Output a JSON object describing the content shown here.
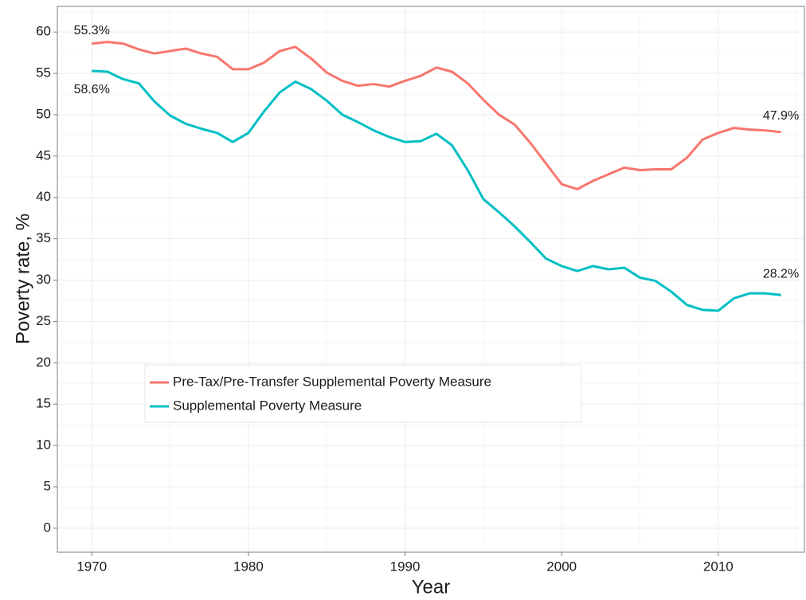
{
  "chart_data": {
    "type": "line",
    "x": [
      1970,
      1971,
      1972,
      1973,
      1974,
      1975,
      1976,
      1977,
      1978,
      1979,
      1980,
      1981,
      1982,
      1983,
      1984,
      1985,
      1986,
      1987,
      1988,
      1989,
      1990,
      1991,
      1992,
      1993,
      1994,
      1995,
      1996,
      1997,
      1998,
      1999,
      2000,
      2001,
      2002,
      2003,
      2004,
      2005,
      2006,
      2007,
      2008,
      2009,
      2010,
      2011,
      2012,
      2013,
      2014
    ],
    "series": [
      {
        "name": "Pre-Tax/Pre-Transfer Supplemental Poverty Measure",
        "color": "#f8766d",
        "values": [
          58.6,
          58.8,
          58.6,
          57.9,
          57.4,
          57.7,
          58.0,
          57.4,
          57.0,
          55.5,
          55.5,
          56.3,
          57.7,
          58.2,
          56.8,
          55.1,
          54.1,
          53.5,
          53.7,
          53.4,
          54.1,
          54.7,
          55.7,
          55.2,
          53.8,
          51.8,
          50.0,
          48.8,
          46.6,
          44.1,
          41.6,
          41.0,
          42.0,
          42.8,
          43.6,
          43.3,
          43.4,
          43.4,
          44.8,
          47.0,
          47.8,
          48.4,
          48.2,
          48.1,
          47.9
        ]
      },
      {
        "name": "Supplemental Poverty Measure",
        "color": "#00bfc4",
        "values": [
          55.3,
          55.2,
          54.3,
          53.8,
          51.6,
          49.9,
          48.9,
          48.3,
          47.8,
          46.7,
          47.8,
          50.4,
          52.7,
          54.0,
          53.1,
          51.7,
          50.0,
          49.1,
          48.1,
          47.3,
          46.7,
          46.8,
          47.7,
          46.3,
          43.3,
          39.8,
          38.2,
          36.5,
          34.6,
          32.6,
          31.7,
          31.1,
          31.7,
          31.3,
          31.5,
          30.3,
          29.9,
          28.6,
          27.0,
          26.4,
          26.3,
          27.8,
          28.4,
          28.4,
          28.2
        ]
      }
    ],
    "annotations": [
      "55.3%",
      "58.6%",
      "47.9%",
      "28.2%"
    ],
    "xlabel": "Year",
    "ylabel": "Poverty rate, %",
    "xlim": [
      1967.8,
      2015.5
    ],
    "ylim": [
      -2.9,
      63.1
    ],
    "xticks": [
      1970,
      1980,
      1990,
      2000,
      2010
    ],
    "yticks": [
      0,
      5,
      10,
      15,
      20,
      25,
      30,
      35,
      40,
      45,
      50,
      55,
      60
    ],
    "xminor_ticks": [
      1975,
      1985,
      1995,
      2005,
      2015
    ],
    "yminor_ticks": [
      -2.5,
      2.5,
      7.5,
      12.5,
      17.5,
      22.5,
      27.5,
      32.5,
      37.5,
      42.5,
      47.5,
      52.5,
      57.5,
      62.5
    ],
    "grid": true,
    "legend": "lower-left"
  }
}
